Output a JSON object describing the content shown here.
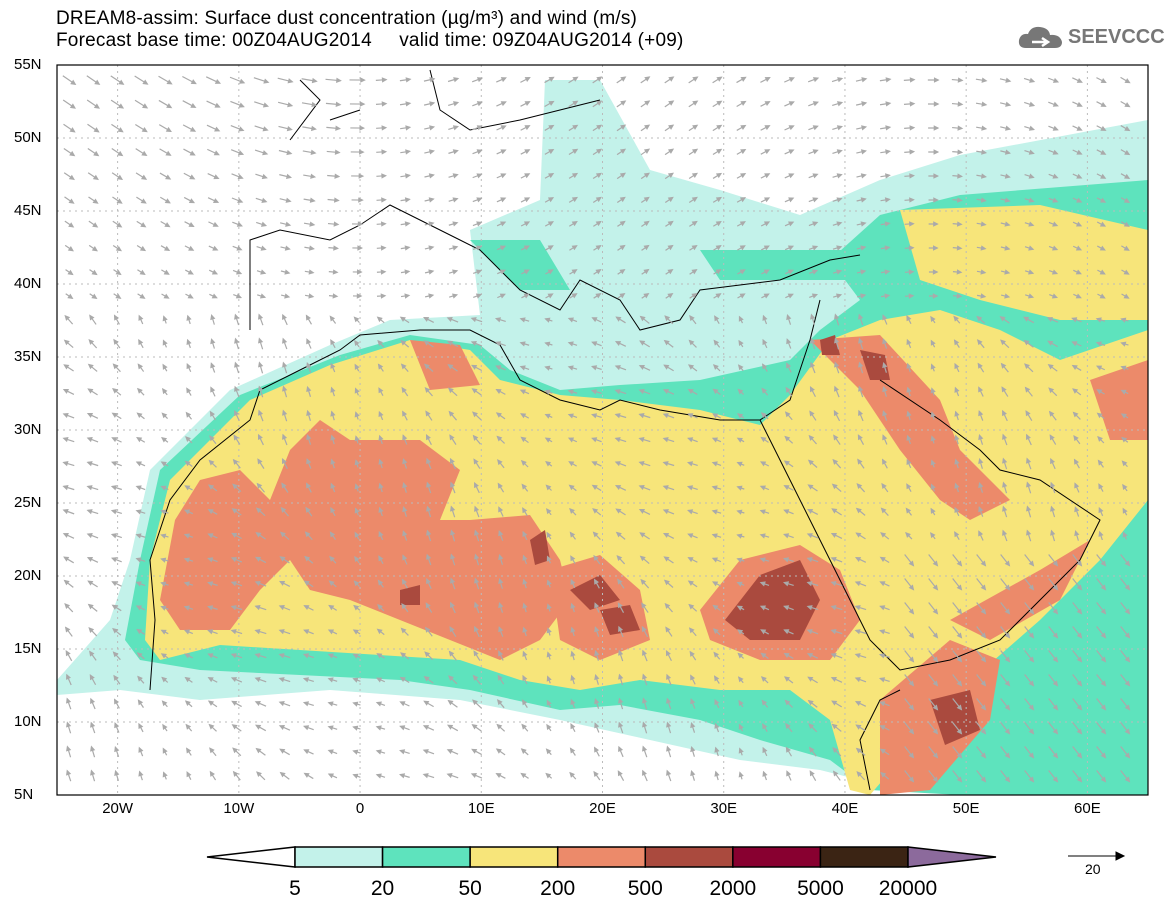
{
  "header": {
    "title": "DREAM8-assim: Surface dust concentration (µg/m³) and wind (m/s)",
    "subtitle": "Forecast base time: 00Z04AUG2014     valid time: 09Z04AUG2014 (+09)"
  },
  "logo": {
    "text": "SEEVCCC",
    "icon": "cloud-icon"
  },
  "map": {
    "lat_labels": [
      "55N",
      "50N",
      "45N",
      "40N",
      "35N",
      "30N",
      "25N",
      "20N",
      "15N",
      "10N",
      "5N"
    ],
    "lon_labels": [
      "20W",
      "10W",
      "0",
      "10E",
      "20E",
      "30E",
      "40E",
      "50E",
      "60E"
    ],
    "extent": {
      "lon": [
        -25,
        65
      ],
      "lat": [
        5,
        55
      ]
    }
  },
  "colorbar": {
    "labels": [
      "5",
      "20",
      "50",
      "200",
      "500",
      "2000",
      "5000",
      "20000"
    ],
    "colors": [
      "#ffffff",
      "#c3f2ea",
      "#5ee3bd",
      "#f7e57a",
      "#ec8a6a",
      "#aa4a3e",
      "#880030",
      "#3b2414",
      "#8c6a9c"
    ]
  },
  "wind_reference": {
    "label": "20"
  }
}
